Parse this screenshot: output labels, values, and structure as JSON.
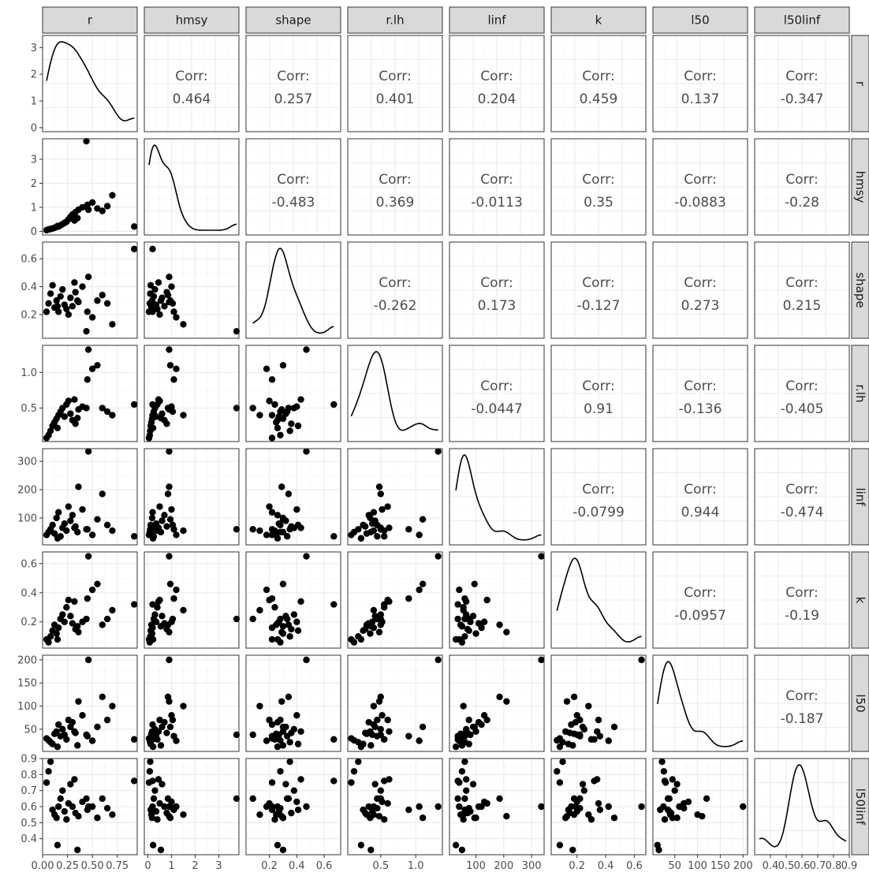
{
  "chart_data": {
    "type": "scatter",
    "title": "",
    "variables": [
      "r",
      "hmsy",
      "shape",
      "r.lh",
      "linf",
      "k",
      "l50",
      "l50linf"
    ],
    "strip_labels": [
      "r",
      "hmsy",
      "shape",
      "r.lh",
      "linf",
      "k",
      "l50",
      "l50linf"
    ],
    "corr_label": "Corr:",
    "correlations": [
      {
        "row": "hmsy",
        "col": "r",
        "value": "0.464"
      },
      {
        "row": "shape",
        "col": "r",
        "value": "0.257"
      },
      {
        "row": "r.lh",
        "col": "r",
        "value": "0.401"
      },
      {
        "row": "linf",
        "col": "r",
        "value": "0.204"
      },
      {
        "row": "k",
        "col": "r",
        "value": "0.459"
      },
      {
        "row": "l50",
        "col": "r",
        "value": "0.137"
      },
      {
        "row": "l50linf",
        "col": "r",
        "value": "-0.347"
      },
      {
        "row": "shape",
        "col": "hmsy",
        "value": "-0.483"
      },
      {
        "row": "r.lh",
        "col": "hmsy",
        "value": "0.369"
      },
      {
        "row": "linf",
        "col": "hmsy",
        "value": "-0.0113"
      },
      {
        "row": "k",
        "col": "hmsy",
        "value": "0.35"
      },
      {
        "row": "l50",
        "col": "hmsy",
        "value": "-0.0883"
      },
      {
        "row": "l50linf",
        "col": "hmsy",
        "value": "-0.28"
      },
      {
        "row": "r.lh",
        "col": "shape",
        "value": "-0.262"
      },
      {
        "row": "linf",
        "col": "shape",
        "value": "0.173"
      },
      {
        "row": "k",
        "col": "shape",
        "value": "-0.127"
      },
      {
        "row": "l50",
        "col": "shape",
        "value": "0.273"
      },
      {
        "row": "l50linf",
        "col": "shape",
        "value": "0.215"
      },
      {
        "row": "linf",
        "col": "r.lh",
        "value": "-0.0447"
      },
      {
        "row": "k",
        "col": "r.lh",
        "value": "0.91"
      },
      {
        "row": "l50",
        "col": "r.lh",
        "value": "-0.136"
      },
      {
        "row": "l50linf",
        "col": "r.lh",
        "value": "-0.405"
      },
      {
        "row": "k",
        "col": "linf",
        "value": "-0.0799"
      },
      {
        "row": "l50",
        "col": "linf",
        "value": "0.944"
      },
      {
        "row": "l50linf",
        "col": "linf",
        "value": "-0.474"
      },
      {
        "row": "l50",
        "col": "k",
        "value": "-0.0957"
      },
      {
        "row": "l50linf",
        "col": "k",
        "value": "-0.19"
      },
      {
        "row": "l50linf",
        "col": "l50",
        "value": "-0.187"
      }
    ],
    "x_axes": [
      {
        "var": "r",
        "range": [
          0.0,
          0.95
        ],
        "ticks": [
          0.0,
          0.25,
          0.5,
          0.75
        ],
        "tick_labels": [
          "0.00",
          "0.25",
          "0.50",
          "0.75"
        ]
      },
      {
        "var": "hmsy",
        "range": [
          -0.15,
          3.85
        ],
        "ticks": [
          0,
          1,
          2,
          3
        ],
        "tick_labels": [
          "0",
          "1",
          "2",
          "3"
        ]
      },
      {
        "var": "shape",
        "range": [
          0.03,
          0.72
        ],
        "ticks": [
          0.2,
          0.4,
          0.6
        ],
        "tick_labels": [
          "0.2",
          "0.4",
          "0.6"
        ]
      },
      {
        "var": "r.lh",
        "range": [
          0.03,
          1.38
        ],
        "ticks": [
          0.5,
          1.0
        ],
        "tick_labels": [
          "0.5",
          "1.0"
        ]
      },
      {
        "var": "linf",
        "range": [
          5,
          345
        ],
        "ticks": [
          100,
          200,
          300
        ],
        "tick_labels": [
          "100",
          "200",
          "300"
        ]
      },
      {
        "var": "k",
        "range": [
          0.02,
          0.68
        ],
        "ticks": [
          0.2,
          0.4,
          0.6
        ],
        "tick_labels": [
          "0.2",
          "0.4",
          "0.6"
        ]
      },
      {
        "var": "l50",
        "range": [
          2,
          210
        ],
        "ticks": [
          50,
          100,
          150,
          200
        ],
        "tick_labels": [
          "50",
          "100",
          "150",
          "200"
        ]
      },
      {
        "var": "l50linf",
        "range": [
          0.3,
          0.9
        ],
        "ticks": [
          0.4,
          0.5,
          0.6,
          0.7,
          0.8,
          0.9
        ],
        "tick_labels": [
          "0.4",
          "0.5",
          "0.6",
          "0.7",
          "0.8",
          "0.9"
        ]
      }
    ],
    "y_axes": [
      {
        "var": "r",
        "range": [
          -0.15,
          3.45
        ],
        "ticks": [
          0,
          1,
          2,
          3
        ],
        "tick_labels": [
          "0",
          "1",
          "2",
          "3"
        ]
      },
      {
        "var": "hmsy",
        "range": [
          -0.15,
          3.85
        ],
        "ticks": [
          0,
          1,
          2,
          3
        ],
        "tick_labels": [
          "0",
          "1",
          "2",
          "3"
        ]
      },
      {
        "var": "shape",
        "range": [
          0.03,
          0.72
        ],
        "ticks": [
          0.2,
          0.4,
          0.6
        ],
        "tick_labels": [
          "0.2",
          "0.4",
          "0.6"
        ]
      },
      {
        "var": "r.lh",
        "range": [
          0.03,
          1.38
        ],
        "ticks": [
          0.5,
          1.0
        ],
        "tick_labels": [
          "0.5",
          "1.0"
        ]
      },
      {
        "var": "linf",
        "range": [
          5,
          345
        ],
        "ticks": [
          100,
          200,
          300
        ],
        "tick_labels": [
          "100",
          "200",
          "300"
        ]
      },
      {
        "var": "k",
        "range": [
          0.02,
          0.68
        ],
        "ticks": [
          0.2,
          0.4,
          0.6
        ],
        "tick_labels": [
          "0.2",
          "0.4",
          "0.6"
        ]
      },
      {
        "var": "l50",
        "range": [
          2,
          210
        ],
        "ticks": [
          50,
          100,
          150,
          200
        ],
        "tick_labels": [
          "50",
          "100",
          "150",
          "200"
        ]
      },
      {
        "var": "l50linf",
        "range": [
          0.3,
          0.9
        ],
        "ticks": [
          0.4,
          0.5,
          0.6,
          0.7,
          0.8,
          0.9
        ],
        "tick_labels": [
          "0.4",
          "0.5",
          "0.6",
          "0.7",
          "0.8",
          "0.9"
        ]
      }
    ],
    "density_peaks": [
      {
        "var": "r",
        "peak_x": 0.1,
        "peak_y": 3.2
      },
      {
        "var": "hmsy",
        "peak_x": 0.2,
        "peak_density_relative": 1.0
      },
      {
        "var": "shape",
        "peaks_x": [
          0.26,
          0.4
        ]
      },
      {
        "var": "r.lh",
        "peak_x": 0.35
      },
      {
        "var": "linf",
        "peak_x": 40
      },
      {
        "var": "k",
        "peaks_x": [
          0.11,
          0.2
        ]
      },
      {
        "var": "l50",
        "peak_x": 30
      },
      {
        "var": "l50linf",
        "peak_x": 0.55
      }
    ],
    "observations": [
      {
        "r": 0.04,
        "hmsy": 0.05,
        "shape": 0.22,
        "r.lh": 0.08,
        "linf": 40,
        "k": 0.08,
        "l50": 30,
        "l50linf": 0.75
      },
      {
        "r": 0.06,
        "hmsy": 0.08,
        "shape": 0.28,
        "r.lh": 0.12,
        "linf": 50,
        "k": 0.06,
        "l50": 26,
        "l50linf": 0.82
      },
      {
        "r": 0.08,
        "hmsy": 0.1,
        "shape": 0.35,
        "r.lh": 0.18,
        "linf": 60,
        "k": 0.1,
        "l50": 22,
        "l50linf": 0.88
      },
      {
        "r": 0.1,
        "hmsy": 0.12,
        "shape": 0.41,
        "r.lh": 0.25,
        "linf": 75,
        "k": 0.14,
        "l50": 18,
        "l50linf": 0.58
      },
      {
        "r": 0.12,
        "hmsy": 0.15,
        "shape": 0.25,
        "r.lh": 0.3,
        "linf": 45,
        "k": 0.18,
        "l50": 40,
        "l50linf": 0.55
      },
      {
        "r": 0.14,
        "hmsy": 0.18,
        "shape": 0.3,
        "r.lh": 0.35,
        "linf": 100,
        "k": 0.12,
        "l50": 45,
        "l50linf": 0.53
      },
      {
        "r": 0.16,
        "hmsy": 0.2,
        "shape": 0.22,
        "r.lh": 0.4,
        "linf": 120,
        "k": 0.16,
        "l50": 60,
        "l50linf": 0.6
      },
      {
        "r": 0.18,
        "hmsy": 0.25,
        "shape": 0.33,
        "r.lh": 0.45,
        "linf": 35,
        "k": 0.22,
        "l50": 35,
        "l50linf": 0.65
      },
      {
        "r": 0.2,
        "hmsy": 0.3,
        "shape": 0.38,
        "r.lh": 0.5,
        "linf": 65,
        "k": 0.25,
        "l50": 50,
        "l50linf": 0.7
      },
      {
        "r": 0.22,
        "hmsy": 0.35,
        "shape": 0.27,
        "r.lh": 0.38,
        "linf": 80,
        "k": 0.2,
        "l50": 38,
        "l50linf": 0.57
      },
      {
        "r": 0.24,
        "hmsy": 0.4,
        "shape": 0.24,
        "r.lh": 0.55,
        "linf": 55,
        "k": 0.3,
        "l50": 28,
        "l50linf": 0.52
      },
      {
        "r": 0.26,
        "hmsy": 0.5,
        "shape": 0.2,
        "r.lh": 0.6,
        "linf": 140,
        "k": 0.35,
        "l50": 70,
        "l50linf": 0.62
      },
      {
        "r": 0.28,
        "hmsy": 0.6,
        "shape": 0.32,
        "r.lh": 0.42,
        "linf": 90,
        "k": 0.24,
        "l50": 55,
        "l50linf": 0.74
      },
      {
        "r": 0.3,
        "hmsy": 0.7,
        "shape": 0.26,
        "r.lh": 0.33,
        "linf": 110,
        "k": 0.19,
        "l50": 65,
        "l50linf": 0.6
      },
      {
        "r": 0.33,
        "hmsy": 0.8,
        "shape": 0.36,
        "r.lh": 0.28,
        "linf": 70,
        "k": 0.15,
        "l50": 42,
        "l50linf": 0.56
      },
      {
        "r": 0.36,
        "hmsy": 0.9,
        "shape": 0.29,
        "r.lh": 0.48,
        "linf": 210,
        "k": 0.13,
        "l50": 110,
        "l50linf": 0.54
      },
      {
        "r": 0.4,
        "hmsy": 1.0,
        "shape": 0.4,
        "r.lh": 0.52,
        "linf": 130,
        "k": 0.2,
        "l50": 80,
        "l50linf": 0.63
      },
      {
        "r": 0.45,
        "hmsy": 1.1,
        "shape": 0.22,
        "r.lh": 0.9,
        "linf": 60,
        "k": 0.36,
        "l50": 35,
        "l50linf": 0.58
      },
      {
        "r": 0.5,
        "hmsy": 1.2,
        "shape": 0.18,
        "r.lh": 1.05,
        "linf": 40,
        "k": 0.42,
        "l50": 25,
        "l50linf": 0.6
      },
      {
        "r": 0.55,
        "hmsy": 0.95,
        "shape": 0.3,
        "r.lh": 1.1,
        "linf": 95,
        "k": 0.46,
        "l50": 55,
        "l50linf": 0.53
      },
      {
        "r": 0.6,
        "hmsy": 0.85,
        "shape": 0.34,
        "r.lh": 0.5,
        "linf": 185,
        "k": 0.18,
        "l50": 120,
        "l50linf": 0.65
      },
      {
        "r": 0.65,
        "hmsy": 1.05,
        "shape": 0.28,
        "r.lh": 0.45,
        "linf": 75,
        "k": 0.22,
        "l50": 70,
        "l50linf": 0.59
      },
      {
        "r": 0.7,
        "hmsy": 1.5,
        "shape": 0.13,
        "r.lh": 0.4,
        "linf": 55,
        "k": 0.28,
        "l50": 100,
        "l50linf": 0.55
      },
      {
        "r": 0.44,
        "hmsy": 3.75,
        "shape": 0.08,
        "r.lh": 0.5,
        "linf": 60,
        "k": 0.22,
        "l50": 38,
        "l50linf": 0.65
      },
      {
        "r": 0.92,
        "hmsy": 0.2,
        "shape": 0.67,
        "r.lh": 0.55,
        "linf": 35,
        "k": 0.32,
        "l50": 28,
        "l50linf": 0.76
      },
      {
        "r": 0.46,
        "hmsy": 0.9,
        "shape": 0.47,
        "r.lh": 1.32,
        "linf": 335,
        "k": 0.65,
        "l50": 200,
        "l50linf": 0.6
      },
      {
        "r": 0.32,
        "hmsy": 0.45,
        "shape": 0.43,
        "r.lh": 0.62,
        "linf": 65,
        "k": 0.34,
        "l50": 45,
        "l50linf": 0.77
      },
      {
        "r": 0.15,
        "hmsy": 0.22,
        "shape": 0.26,
        "r.lh": 0.22,
        "linf": 28,
        "k": 0.08,
        "l50": 12,
        "l50linf": 0.36
      },
      {
        "r": 0.35,
        "hmsy": 0.55,
        "shape": 0.3,
        "r.lh": 0.36,
        "linf": 50,
        "k": 0.17,
        "l50": 15,
        "l50linf": 0.33
      }
    ]
  }
}
